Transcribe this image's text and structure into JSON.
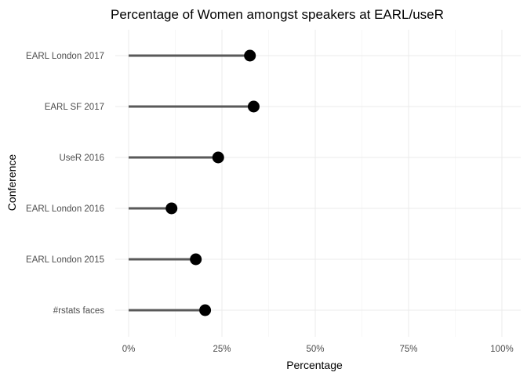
{
  "chart_data": {
    "type": "lollipop",
    "title": "Percentage of Women amongst speakers at EARL/useR",
    "xlabel": "Percentage",
    "ylabel": "Conference",
    "xlim": [
      0,
      1
    ],
    "x_ticks": [
      0,
      0.25,
      0.5,
      0.75,
      1.0
    ],
    "x_tick_labels": [
      "0%",
      "25%",
      "50%",
      "75%",
      "100%"
    ],
    "categories": [
      "EARL London 2017",
      "EARL SF 2017",
      "UseR 2016",
      "EARL London 2016",
      "EARL London 2015",
      "#rstats faces"
    ],
    "values": [
      0.325,
      0.335,
      0.24,
      0.115,
      0.18,
      0.205
    ],
    "grid": true,
    "point_color": "#000000",
    "segment_color": "#595959"
  }
}
